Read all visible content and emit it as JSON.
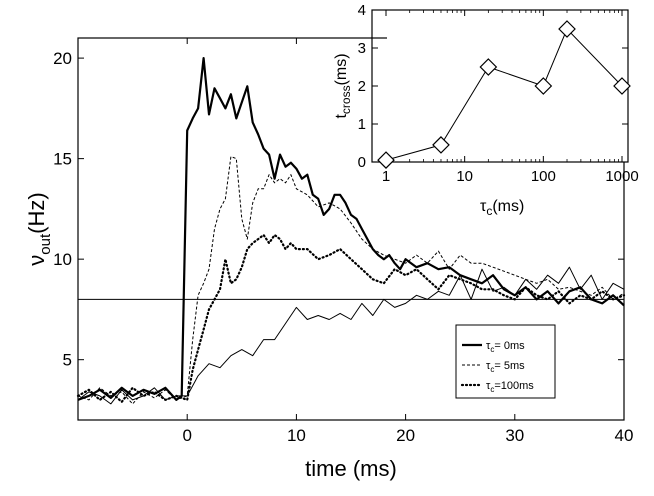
{
  "chart_data": [
    {
      "type": "line",
      "xlabel": "time (ms)",
      "ylabel_main": "ν",
      "ylabel_sub": "out",
      "ylabel_unit": "(Hz)",
      "xlim": [
        -10,
        40
      ],
      "ylim": [
        2,
        21
      ],
      "xticks": [
        0,
        10,
        20,
        30,
        40
      ],
      "yticks": [
        5,
        10,
        15,
        20
      ],
      "hline": 8,
      "legend_position": "bottom-right",
      "series": [
        {
          "name": "τc=0ms",
          "legend_sym": "τ",
          "legend_sub": "c",
          "legend_rest": "= 0ms",
          "style": "solid-thick",
          "x": [
            -10,
            -9,
            -8,
            -7,
            -6,
            -5,
            -4,
            -3,
            -2,
            -1,
            -0.5,
            0,
            0.5,
            1,
            1.5,
            2,
            2.5,
            3,
            3.5,
            4,
            4.5,
            5,
            5.5,
            6,
            6.5,
            7,
            7.5,
            8,
            8.5,
            9,
            9.5,
            10,
            10.5,
            11,
            11.5,
            12,
            12.5,
            13,
            13.5,
            14,
            14.5,
            15,
            15.5,
            16,
            16.5,
            17,
            17.5,
            18,
            18.5,
            19,
            19.5,
            20,
            21,
            22,
            23,
            24,
            25,
            26,
            27,
            28,
            29,
            30,
            31,
            32,
            33,
            34,
            35,
            36,
            37,
            38,
            39,
            40
          ],
          "y": [
            3.0,
            3.2,
            3.5,
            3.1,
            3.6,
            3.2,
            3.5,
            3.3,
            3.6,
            3.0,
            3.2,
            16.4,
            17.0,
            17.5,
            20.0,
            17.2,
            18.5,
            18.0,
            17.5,
            18.2,
            17.0,
            17.8,
            18.6,
            16.8,
            16.2,
            15.5,
            15.2,
            14.0,
            15.2,
            14.6,
            14.8,
            14.5,
            14.0,
            14.2,
            13.2,
            13.0,
            12.2,
            12.5,
            13.2,
            13.2,
            12.8,
            12.2,
            12.0,
            11.5,
            11.0,
            10.5,
            10.2,
            10.0,
            10.2,
            9.8,
            9.5,
            10.0,
            9.6,
            9.8,
            9.5,
            9.6,
            9.2,
            9.0,
            8.8,
            9.2,
            8.5,
            8.2,
            8.6,
            8.0,
            8.4,
            7.8,
            8.4,
            8.6,
            8.0,
            7.8,
            8.2,
            7.7
          ]
        },
        {
          "name": "τc=5ms",
          "legend_sym": "τ",
          "legend_sub": "c",
          "legend_rest": "= 5ms",
          "style": "dashed",
          "x": [
            -10,
            -9,
            -8,
            -7,
            -6,
            -5,
            -4,
            -3,
            -2,
            -1,
            0,
            0.5,
            1,
            1.5,
            2,
            2.5,
            3,
            3.5,
            4,
            4.5,
            5,
            5.5,
            6,
            6.5,
            7,
            7.5,
            8,
            8.5,
            9,
            9.5,
            10,
            11,
            12,
            13,
            14,
            15,
            16,
            17,
            18,
            19,
            20,
            21,
            22,
            23,
            24,
            25,
            26,
            27,
            28,
            29,
            30,
            31,
            32,
            33,
            34,
            35,
            36,
            37,
            38,
            39,
            40
          ],
          "y": [
            3.2,
            3.0,
            3.6,
            3.2,
            3.4,
            2.8,
            3.4,
            3.1,
            3.5,
            3.0,
            3.2,
            6.0,
            8.2,
            8.8,
            9.5,
            11.5,
            12.5,
            13.0,
            15.1,
            15.0,
            12.0,
            11.0,
            12.8,
            13.5,
            13.5,
            14.2,
            13.8,
            14.0,
            13.8,
            14.2,
            13.5,
            13.2,
            12.6,
            12.8,
            12.5,
            11.8,
            11.0,
            10.5,
            10.2,
            10.0,
            9.8,
            10.2,
            9.8,
            10.4,
            9.5,
            10.2,
            9.8,
            9.8,
            9.6,
            9.4,
            9.2,
            9.0,
            8.8,
            9.0,
            8.5,
            8.6,
            8.4,
            8.2,
            8.6,
            8.0,
            8.3
          ]
        },
        {
          "name": "τc=100ms",
          "legend_sym": "τ",
          "legend_sub": "c",
          "legend_rest": "=100ms",
          "style": "dotted",
          "x": [
            -10,
            -9,
            -8,
            -7,
            -6,
            -5,
            -4,
            -3,
            -2,
            -1,
            0,
            0.5,
            1,
            1.5,
            2,
            2.5,
            3,
            3.5,
            4,
            4.5,
            5,
            5.5,
            6,
            6.5,
            7,
            7.5,
            8,
            8.5,
            9,
            9.5,
            10,
            11,
            12,
            13,
            14,
            15,
            16,
            17,
            18,
            19,
            20,
            21,
            22,
            23,
            24,
            25,
            26,
            27,
            28,
            29,
            30,
            31,
            32,
            33,
            34,
            35,
            36,
            37,
            38,
            39,
            40
          ],
          "y": [
            3.2,
            3.5,
            3.0,
            3.4,
            2.9,
            3.6,
            3.2,
            3.4,
            3.0,
            3.2,
            3.0,
            4.5,
            5.5,
            6.5,
            7.5,
            8.0,
            8.5,
            10.0,
            8.8,
            9.0,
            9.6,
            10.5,
            10.8,
            11.0,
            11.2,
            10.8,
            11.2,
            11.0,
            10.5,
            10.8,
            10.5,
            10.5,
            10.0,
            10.2,
            10.5,
            10.0,
            9.5,
            9.0,
            8.8,
            9.5,
            9.2,
            9.5,
            9.0,
            8.5,
            9.2,
            9.0,
            8.8,
            8.5,
            8.5,
            8.2,
            8.0,
            8.6,
            8.2,
            8.0,
            8.4,
            7.8,
            8.2,
            8.0,
            8.4,
            8.0,
            8.2
          ]
        },
        {
          "name": "unlabeled thin",
          "style": "solid-thin",
          "x": [
            -10,
            -9,
            -8,
            -7,
            -6,
            -5,
            -4,
            -3,
            -2,
            -1,
            0,
            1,
            2,
            3,
            4,
            5,
            6,
            7,
            8,
            9,
            10,
            11,
            12,
            13,
            14,
            15,
            16,
            17,
            18,
            19,
            20,
            21,
            22,
            23,
            24,
            25,
            26,
            27,
            28,
            29,
            30,
            31,
            32,
            33,
            34,
            35,
            36,
            37,
            38,
            39,
            40
          ],
          "y": [
            3.0,
            3.4,
            3.2,
            2.8,
            3.5,
            3.0,
            3.2,
            3.6,
            3.0,
            3.2,
            3.2,
            4.2,
            4.8,
            4.6,
            5.2,
            5.5,
            5.2,
            6.0,
            6.0,
            6.8,
            7.6,
            7.0,
            7.2,
            7.0,
            7.3,
            7.0,
            7.8,
            7.2,
            8.0,
            7.6,
            7.8,
            8.2,
            8.0,
            8.4,
            8.2,
            9.2,
            8.0,
            9.5,
            8.4,
            8.6,
            8.2,
            9.0,
            8.5,
            9.2,
            8.8,
            9.6,
            8.5,
            9.2,
            8.0,
            8.8,
            8.5
          ]
        }
      ]
    },
    {
      "type": "line",
      "inset": true,
      "xscale": "log",
      "xlabel_sym": "τ",
      "xlabel_sub": "c",
      "xlabel_rest": "(ms)",
      "ylabel_main": "t",
      "ylabel_sub": "cross",
      "ylabel_rest": "(ms)",
      "xlim": [
        1,
        1000
      ],
      "ylim": [
        0,
        4
      ],
      "xticks": [
        1,
        10,
        100,
        1000
      ],
      "yticks": [
        0,
        1,
        2,
        3,
        4
      ],
      "marker": "diamond",
      "x": [
        1,
        5,
        20,
        100,
        200,
        1000
      ],
      "y": [
        0.05,
        0.45,
        2.5,
        2.0,
        3.5,
        2.0
      ]
    }
  ]
}
